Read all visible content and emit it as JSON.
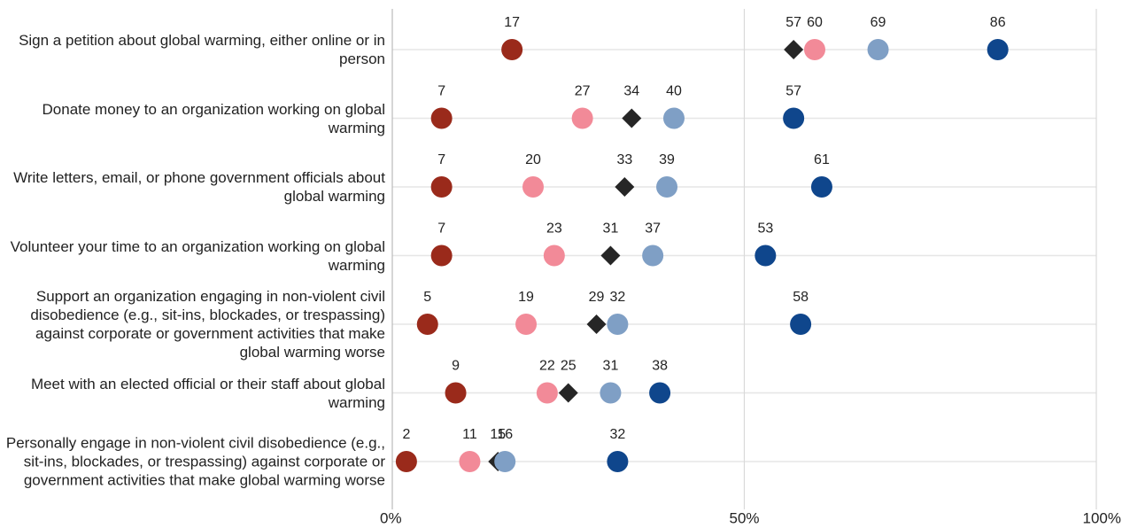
{
  "chart_data": {
    "type": "dot",
    "categories": [
      "Sign a petition about global warming, either online or in person",
      "Donate money to an organization working on global warming",
      "Write letters, email, or phone government officials about global warming",
      "Volunteer your time to an organization working on global warming",
      "Support an organization engaging in non-violent civil disobedience (e.g., sit-ins, blockades, or trespassing) against corporate or government activities that make global warming worse",
      "Meet with an elected official or their staff about global warming",
      "Personally engage in non-violent civil disobedience (e.g., sit-ins, blockades, or trespassing) against corporate or government activities that make global warming worse"
    ],
    "series": [
      {
        "color": "#9a2a1b",
        "marker": "circle",
        "values": [
          17,
          7,
          7,
          7,
          5,
          9,
          2
        ]
      },
      {
        "color": "#262626",
        "marker": "diamond",
        "values": [
          57,
          34,
          33,
          31,
          29,
          25,
          15
        ]
      },
      {
        "color": "#f28a98",
        "marker": "circle",
        "values": [
          60,
          27,
          20,
          23,
          19,
          22,
          11
        ]
      },
      {
        "color": "#7f9fc5",
        "marker": "circle",
        "values": [
          69,
          40,
          39,
          37,
          32,
          31,
          16
        ]
      },
      {
        "color": "#0f468c",
        "marker": "circle",
        "values": [
          86,
          57,
          61,
          53,
          58,
          38,
          32
        ]
      }
    ],
    "xlim": [
      0,
      100
    ],
    "xticks": [
      {
        "value": 0,
        "label": "0%"
      },
      {
        "value": 50,
        "label": "50%"
      },
      {
        "value": 100,
        "label": "100%"
      }
    ],
    "grid": true
  }
}
